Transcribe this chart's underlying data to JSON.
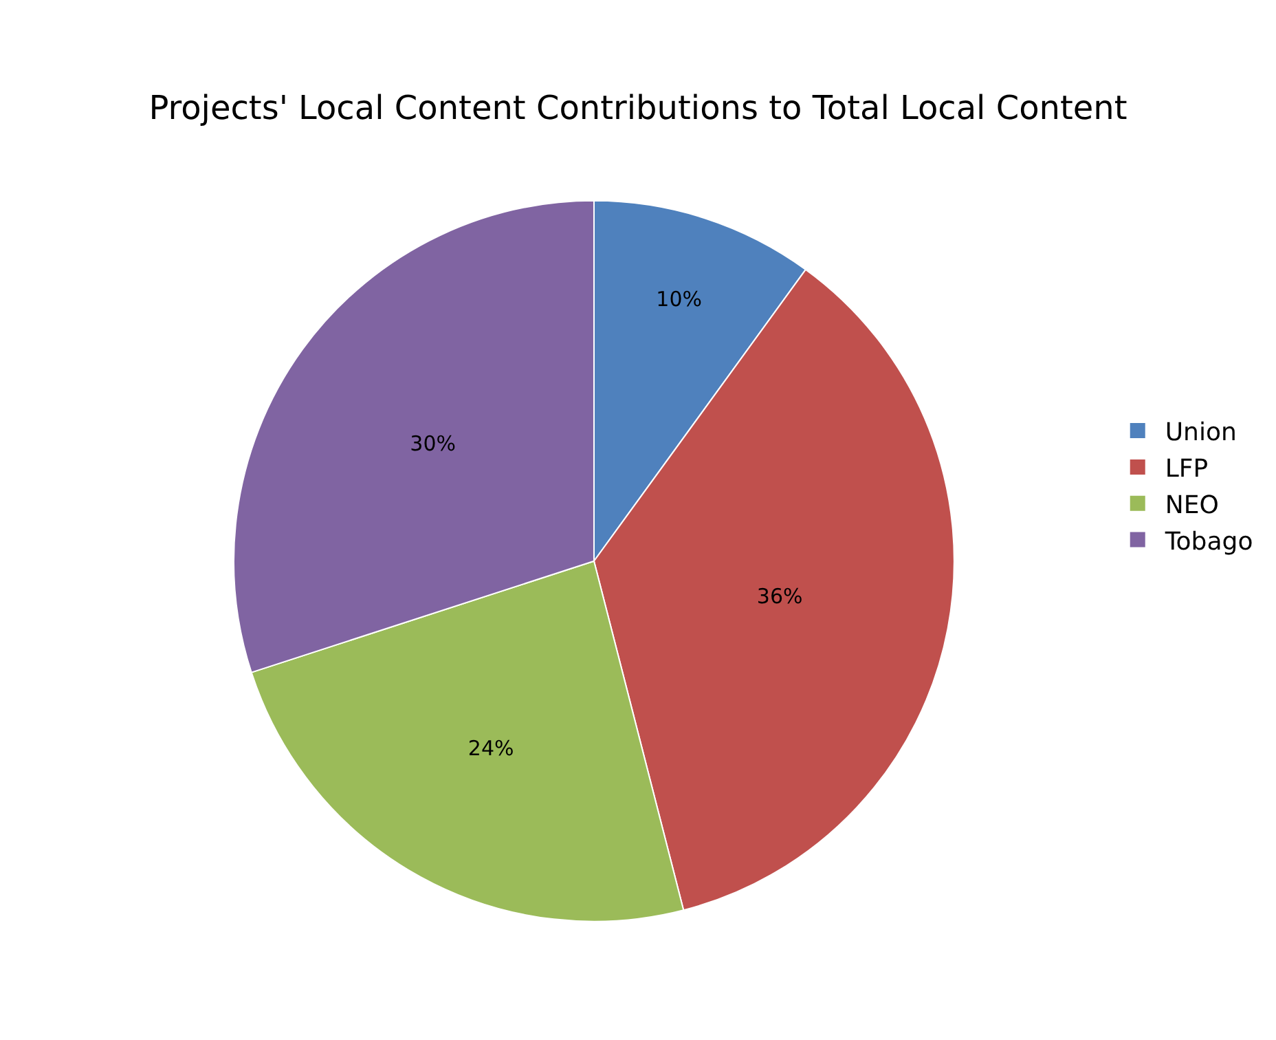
{
  "chart_data": {
    "type": "pie",
    "title": "Projects' Local Content Contributions to Total Local Content",
    "categories": [
      "Union",
      "LFP",
      "NEO",
      "Tobago"
    ],
    "values": [
      10,
      36,
      24,
      30
    ],
    "value_labels": [
      "10%",
      "36%",
      "24%",
      "30%"
    ],
    "colors": [
      "#4f81bd",
      "#c0504d",
      "#9bbb59",
      "#8064a2"
    ],
    "legend": "right"
  }
}
